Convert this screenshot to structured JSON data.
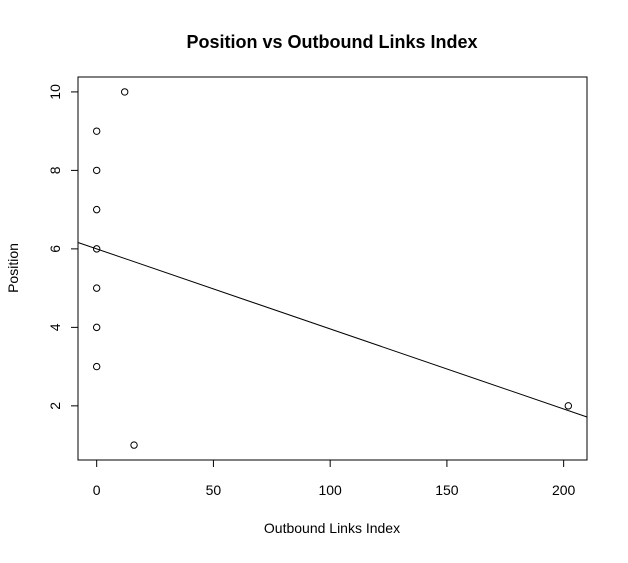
{
  "chart_data": {
    "type": "scatter",
    "title": "Position vs Outbound Links Index",
    "xlabel": "Outbound Links Index",
    "ylabel": "Position",
    "xlim": [
      -8,
      210
    ],
    "ylim": [
      0.62,
      10.38
    ],
    "xticks": [
      0,
      50,
      100,
      150,
      200
    ],
    "yticks": [
      2,
      4,
      6,
      8,
      10
    ],
    "grid": false,
    "legend": "none",
    "series": [
      {
        "x": [
          16,
          202,
          0,
          0,
          0,
          0,
          0,
          0,
          0,
          12
        ],
        "y": [
          1,
          2,
          3,
          4,
          5,
          6,
          7,
          8,
          9,
          10
        ]
      }
    ],
    "trendline": {
      "type": "linear-fit",
      "intercept": 6.0,
      "slope": -0.0204
    },
    "colors": {
      "axis": "#000000",
      "points": "#000000",
      "line": "#000000",
      "background": "#ffffff"
    }
  }
}
